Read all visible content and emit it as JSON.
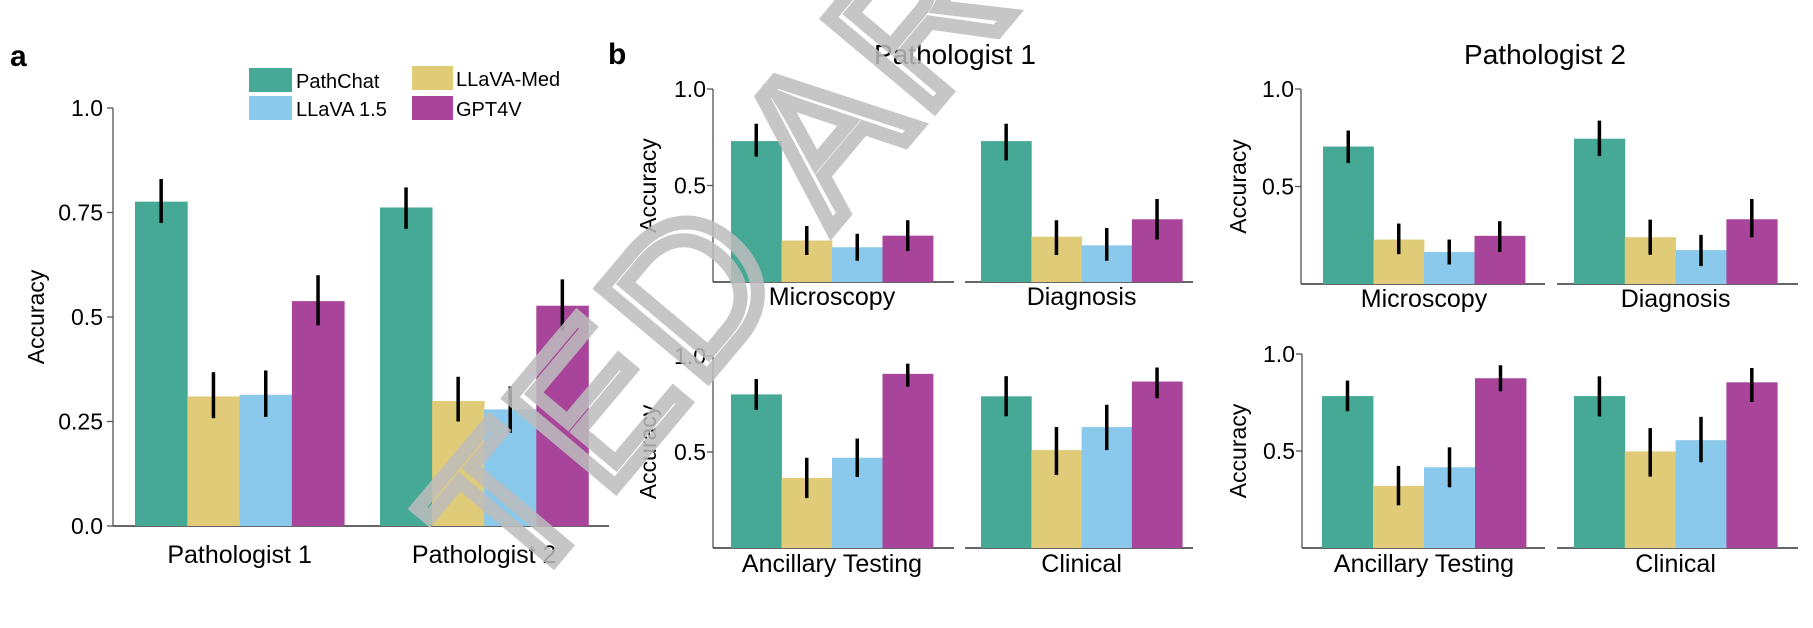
{
  "figure": {
    "panel_a_letter": "a",
    "panel_b_letter": "b",
    "watermark_text": "TED ARTICL"
  },
  "colors": {
    "PathChat": "#45a995",
    "LLaVA-Med": "#dfcb78",
    "LLaVA 1.5": "#8ac9ec",
    "GPT4V": "#a8449a"
  },
  "legend": {
    "entries": [
      "PathChat",
      "LLaVA-Med",
      "LLaVA 1.5",
      "GPT4V"
    ]
  },
  "chart_data": [
    {
      "id": "a",
      "type": "bar",
      "title": "",
      "xlabel": "",
      "ylabel": "Accuracy",
      "ylim": [
        0,
        1.0
      ],
      "yticks": [
        0.0,
        0.25,
        0.5,
        0.75,
        1.0
      ],
      "ytick_labels": [
        "0.0",
        "0.25",
        "0.5",
        "0.75",
        "1.0"
      ],
      "grid": false,
      "legend_position": "top",
      "categories": [
        "Pathologist 1",
        "Pathologist 2"
      ],
      "series": [
        {
          "name": "PathChat",
          "values": [
            0.776,
            0.762
          ],
          "err_low": [
            0.725,
            0.711
          ],
          "err_high": [
            0.83,
            0.81
          ]
        },
        {
          "name": "LLaVA-Med",
          "values": [
            0.31,
            0.299
          ],
          "err_low": [
            0.258,
            0.25
          ],
          "err_high": [
            0.368,
            0.357
          ]
        },
        {
          "name": "LLaVA 1.5",
          "values": [
            0.314,
            0.279
          ],
          "err_low": [
            0.261,
            0.223
          ],
          "err_high": [
            0.372,
            0.334
          ]
        },
        {
          "name": "GPT4V",
          "values": [
            0.538,
            0.527
          ],
          "err_low": [
            0.48,
            0.468
          ],
          "err_high": [
            0.6,
            0.59
          ]
        }
      ]
    },
    {
      "id": "b-p1-top",
      "type": "bar",
      "group_title": "Pathologist 1",
      "ylabel": "Accuracy",
      "ylim": [
        0,
        1.0
      ],
      "yticks": [
        0.5,
        1.0
      ],
      "ytick_labels": [
        "0.5",
        "1.0"
      ],
      "grid": false,
      "categories": [
        "Microscopy",
        "Diagnosis"
      ],
      "series": [
        {
          "name": "PathChat",
          "values": [
            0.73,
            0.73
          ],
          "err_low": [
            0.65,
            0.63
          ],
          "err_high": [
            0.82,
            0.82
          ]
        },
        {
          "name": "LLaVA-Med",
          "values": [
            0.215,
            0.235
          ],
          "err_low": [
            0.14,
            0.14
          ],
          "err_high": [
            0.29,
            0.32
          ]
        },
        {
          "name": "LLaVA 1.5",
          "values": [
            0.18,
            0.19
          ],
          "err_low": [
            0.11,
            0.11
          ],
          "err_high": [
            0.25,
            0.28
          ]
        },
        {
          "name": "GPT4V",
          "values": [
            0.24,
            0.325
          ],
          "err_low": [
            0.16,
            0.22
          ],
          "err_high": [
            0.32,
            0.43
          ]
        }
      ]
    },
    {
      "id": "b-p1-bottom",
      "type": "bar",
      "group_title": "Pathologist 1",
      "ylabel": "Accuracy",
      "ylim": [
        0,
        1.0
      ],
      "yticks": [
        0.5,
        1.0
      ],
      "ytick_labels": [
        "0.5",
        "1.0"
      ],
      "grid": false,
      "categories": [
        "Ancillary Testing",
        "Clinical"
      ],
      "series": [
        {
          "name": "PathChat",
          "values": [
            0.8,
            0.79
          ],
          "err_low": [
            0.72,
            0.686
          ],
          "err_high": [
            0.88,
            0.895
          ]
        },
        {
          "name": "LLaVA-Med",
          "values": [
            0.365,
            0.51
          ],
          "err_low": [
            0.26,
            0.38
          ],
          "err_high": [
            0.47,
            0.63
          ]
        },
        {
          "name": "LLaVA 1.5",
          "values": [
            0.47,
            0.63
          ],
          "err_low": [
            0.37,
            0.51
          ],
          "err_high": [
            0.57,
            0.746
          ]
        },
        {
          "name": "GPT4V",
          "values": [
            0.907,
            0.867
          ],
          "err_low": [
            0.84,
            0.78
          ],
          "err_high": [
            0.96,
            0.94
          ]
        }
      ]
    },
    {
      "id": "b-p2-top",
      "type": "bar",
      "group_title": "Pathologist 2",
      "ylabel": "Accuracy",
      "ylim": [
        0,
        1.0
      ],
      "yticks": [
        0.5,
        1.0
      ],
      "ytick_labels": [
        "0.5",
        "1.0"
      ],
      "grid": false,
      "categories": [
        "Microscopy",
        "Diagnosis"
      ],
      "series": [
        {
          "name": "PathChat",
          "values": [
            0.705,
            0.745
          ],
          "err_low": [
            0.62,
            0.656
          ],
          "err_high": [
            0.787,
            0.838
          ]
        },
        {
          "name": "LLaVA-Med",
          "values": [
            0.228,
            0.24
          ],
          "err_low": [
            0.153,
            0.15
          ],
          "err_high": [
            0.31,
            0.33
          ]
        },
        {
          "name": "LLaVA 1.5",
          "values": [
            0.164,
            0.174
          ],
          "err_low": [
            0.1,
            0.092
          ],
          "err_high": [
            0.228,
            0.252
          ]
        },
        {
          "name": "GPT4V",
          "values": [
            0.247,
            0.332
          ],
          "err_low": [
            0.164,
            0.24
          ],
          "err_high": [
            0.322,
            0.436
          ]
        }
      ]
    },
    {
      "id": "b-p2-bottom",
      "type": "bar",
      "group_title": "Pathologist 2",
      "ylabel": "Accuracy",
      "ylim": [
        0,
        1.0
      ],
      "yticks": [
        0.5,
        1.0
      ],
      "ytick_labels": [
        "0.5",
        "1.0"
      ],
      "grid": false,
      "categories": [
        "Ancillary Testing",
        "Clinical"
      ],
      "series": [
        {
          "name": "PathChat",
          "values": [
            0.783,
            0.783
          ],
          "err_low": [
            0.705,
            0.678
          ],
          "err_high": [
            0.863,
            0.885
          ]
        },
        {
          "name": "LLaVA-Med",
          "values": [
            0.32,
            0.498
          ],
          "err_low": [
            0.22,
            0.368
          ],
          "err_high": [
            0.423,
            0.618
          ]
        },
        {
          "name": "LLaVA 1.5",
          "values": [
            0.416,
            0.556
          ],
          "err_low": [
            0.313,
            0.442
          ],
          "err_high": [
            0.519,
            0.676
          ]
        },
        {
          "name": "GPT4V",
          "values": [
            0.875,
            0.854
          ],
          "err_low": [
            0.808,
            0.753
          ],
          "err_high": [
            0.942,
            0.928
          ]
        }
      ]
    }
  ]
}
